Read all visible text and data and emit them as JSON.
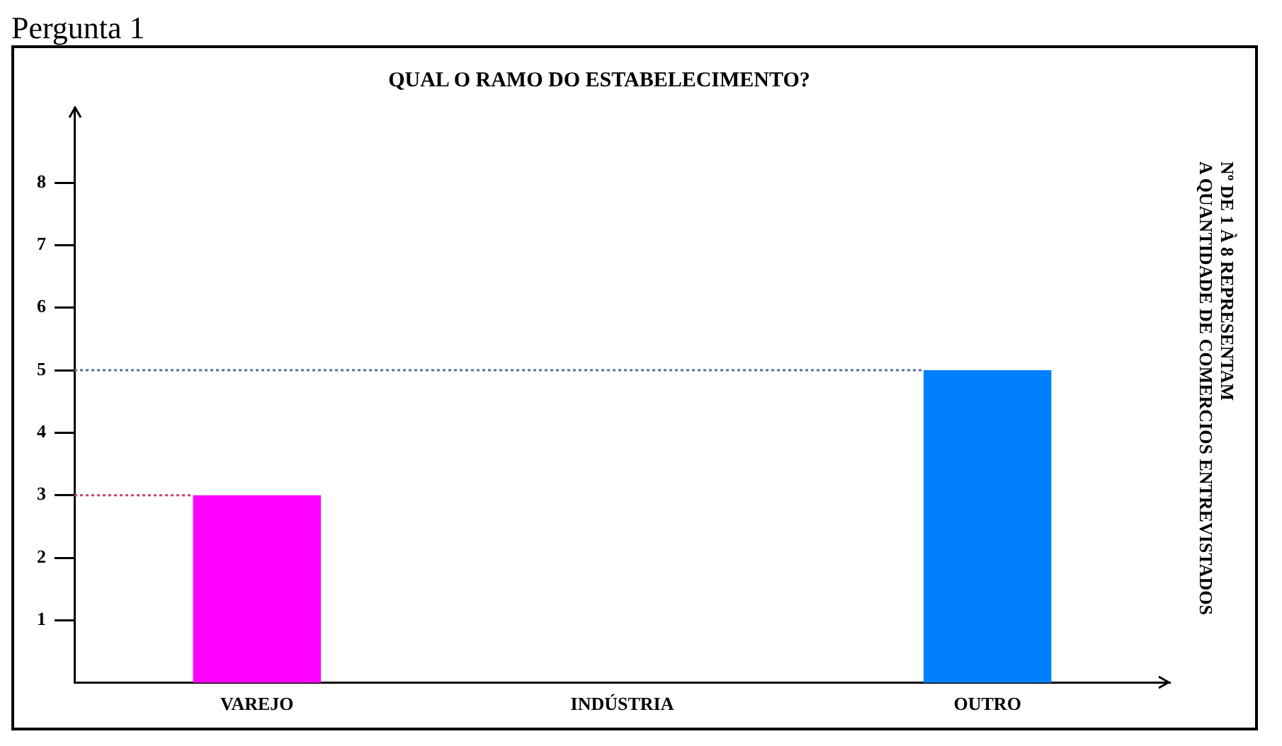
{
  "chart_data": {
    "type": "bar",
    "title": "QUAL O RAMO DO ESTABELECIMENTO?",
    "annotations": [
      "Pergunta 1",
      "Nº DE 1 À 8 REPRESENTAM\nA QUANTIDADE DE COMERCIOS ENTREVISTADOS"
    ],
    "categories": [
      "VAREJO",
      "INDÚSTRIA",
      "OUTRO"
    ],
    "values": [
      3,
      0,
      5
    ],
    "colors": [
      "#ff00ff",
      null,
      "#0080ff"
    ],
    "ylim": [
      0,
      9.2
    ],
    "yticks": [
      1,
      2,
      3,
      4,
      5,
      6,
      7,
      8
    ],
    "ref_lines": [
      {
        "axis": "y",
        "value": 3,
        "color": "#d04070",
        "line_style": "dotted"
      },
      {
        "axis": "y",
        "value": 5,
        "color": "#5070a0",
        "line_style": "dotted"
      }
    ],
    "grid": false,
    "legend": false
  }
}
